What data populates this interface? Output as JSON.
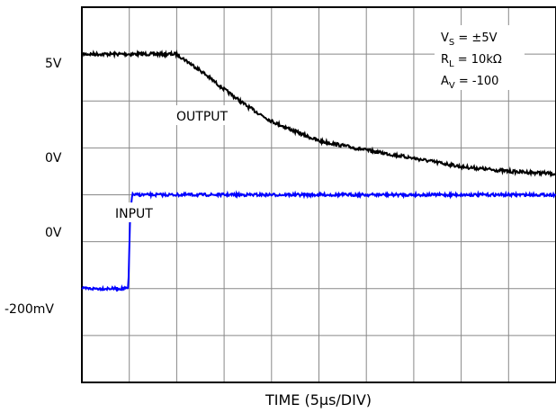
{
  "chart_data": {
    "type": "line",
    "xlabel": "TIME (5µs/DIV)",
    "x_divisions": 10,
    "y_divisions": 8,
    "x_unit": "µs",
    "us_per_div": 5,
    "grid": true,
    "y_labels": [
      "5V",
      "0V",
      "0V",
      "-200mV"
    ],
    "conditions": [
      {
        "symbol": "V",
        "sub": "S",
        "value": " = ±5V"
      },
      {
        "symbol": "R",
        "sub": "L",
        "value": " = 10kΩ"
      },
      {
        "symbol": "A",
        "sub": "V",
        "value": " = -100"
      }
    ],
    "annotations": {
      "output": "OUTPUT",
      "input": "INPUT"
    },
    "series": [
      {
        "name": "OUTPUT",
        "color": "#000000",
        "x_us": [
          0,
          5,
          10,
          12.5,
          15,
          17.5,
          20,
          22.5,
          25,
          30,
          35,
          40,
          45,
          50
        ],
        "y_div": [
          1.0,
          1.0,
          1.0,
          1.35,
          1.75,
          2.12,
          2.43,
          2.65,
          2.85,
          3.05,
          3.22,
          3.4,
          3.5,
          3.55
        ]
      },
      {
        "name": "INPUT",
        "color": "#0000ff",
        "x_us": [
          0,
          4.9,
          5.0,
          5.1,
          5.3,
          50
        ],
        "y_div": [
          6.0,
          6.0,
          5.2,
          4.4,
          4.0,
          4.0
        ]
      }
    ]
  }
}
